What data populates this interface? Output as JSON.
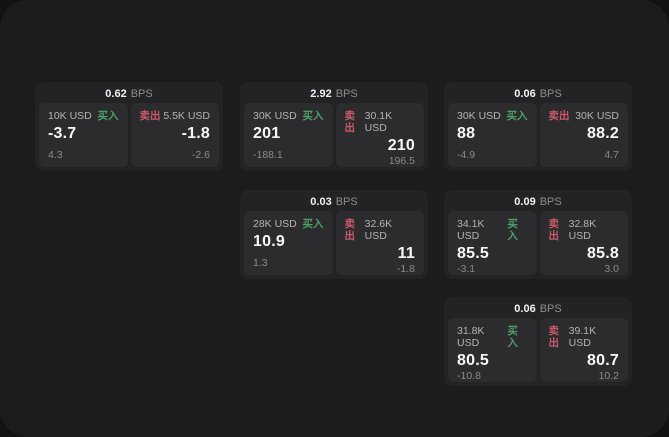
{
  "app": {
    "bps_unit": "BPS",
    "buy_label": "买入",
    "sell_label": "卖出"
  },
  "colors": {
    "buy_green": "#4e9e66",
    "sell_red": "#c9596b",
    "page_bg": "#121212",
    "panel_bg": "#1c1c1e",
    "card_bg": "#232325",
    "subcard_bg": "#2c2c2e"
  },
  "cards": [
    {
      "bps": "0.62",
      "buy": {
        "amount": "10K USD",
        "price": "-3.7",
        "sub": "4.3"
      },
      "sell": {
        "amount": "5.5K USD",
        "price": "-1.8",
        "sub": "-2.6"
      }
    },
    {
      "bps": "2.92",
      "buy": {
        "amount": "30K USD",
        "price": "201",
        "sub": "-188.1"
      },
      "sell": {
        "amount": "30.1K USD",
        "price": "210",
        "sub": "196.5"
      }
    },
    {
      "bps": "0.06",
      "buy": {
        "amount": "30K USD",
        "price": "88",
        "sub": "-4.9"
      },
      "sell": {
        "amount": "30K USD",
        "price": "88.2",
        "sub": "4.7"
      }
    },
    {
      "bps": "0.03",
      "buy": {
        "amount": "28K USD",
        "price": "10.9",
        "sub": "1.3"
      },
      "sell": {
        "amount": "32.6K USD",
        "price": "11",
        "sub": "-1.8"
      }
    },
    {
      "bps": "0.09",
      "buy": {
        "amount": "34.1K USD",
        "price": "85.5",
        "sub": "-3.1"
      },
      "sell": {
        "amount": "32.8K USD",
        "price": "85.8",
        "sub": "3.0"
      }
    },
    {
      "bps": "0.06",
      "buy": {
        "amount": "31.8K USD",
        "price": "80.5",
        "sub": "-10.8"
      },
      "sell": {
        "amount": "39.1K USD",
        "price": "80.7",
        "sub": "10.2"
      }
    }
  ]
}
